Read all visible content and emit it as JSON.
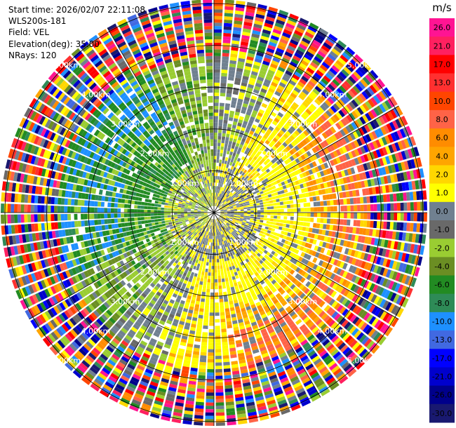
{
  "header": {
    "start_time": "Start time: 2026/02/07 22:11:08",
    "instrument": "WLS200s-181",
    "field": "Field: VEL",
    "elevation": "Elevation(deg): 35.00",
    "nrays": "NRays: 120"
  },
  "colorbar": {
    "unit": "m/s",
    "labels": [
      "26.0",
      "21.0",
      "17.0",
      "13.0",
      "10.0",
      "8.0",
      "6.0",
      "4.0",
      "2.0",
      "1.0",
      "0.0",
      "-1.0",
      "-2.0",
      "-4.0",
      "-6.0",
      "-8.0",
      "-10.0",
      "-13.0",
      "-17.0",
      "-21.0",
      "-26.0",
      "-30.0"
    ],
    "colors": [
      "#ff1493",
      "#ff2060",
      "#ff0000",
      "#ff3030",
      "#ff4500",
      "#ff6347",
      "#ff8c00",
      "#ffa500",
      "#ffd700",
      "#ffff00",
      "#708090",
      "#696969",
      "#9acd32",
      "#6b8e23",
      "#228b22",
      "#2e8b57",
      "#1e90ff",
      "#4169e1",
      "#0000ff",
      "#0000cd",
      "#00008b",
      "#191970"
    ]
  },
  "chart_data": {
    "type": "heatmap",
    "subtype": "radar-ppi",
    "field": "VEL",
    "unit": "m/s",
    "n_rays": 120,
    "elevation_deg": 35.0,
    "range_rings": [
      {
        "range_km": 1.0,
        "label": "1.00km"
      },
      {
        "range_km": 2.0,
        "label": "2.00km"
      },
      {
        "range_km": 3.0,
        "label": "3.00km"
      },
      {
        "range_km": 4.0,
        "label": "4.00km"
      },
      {
        "range_km": 5.0,
        "label": "5.00km"
      }
    ],
    "max_range_km": 5.1,
    "color_scale": {
      "min": -30.0,
      "max": 26.0
    },
    "pattern": "positive (toward yellow/orange) velocities on east-southeast side, negative (green/blue) on west side, noisy random values beyond ~3.7 km"
  }
}
